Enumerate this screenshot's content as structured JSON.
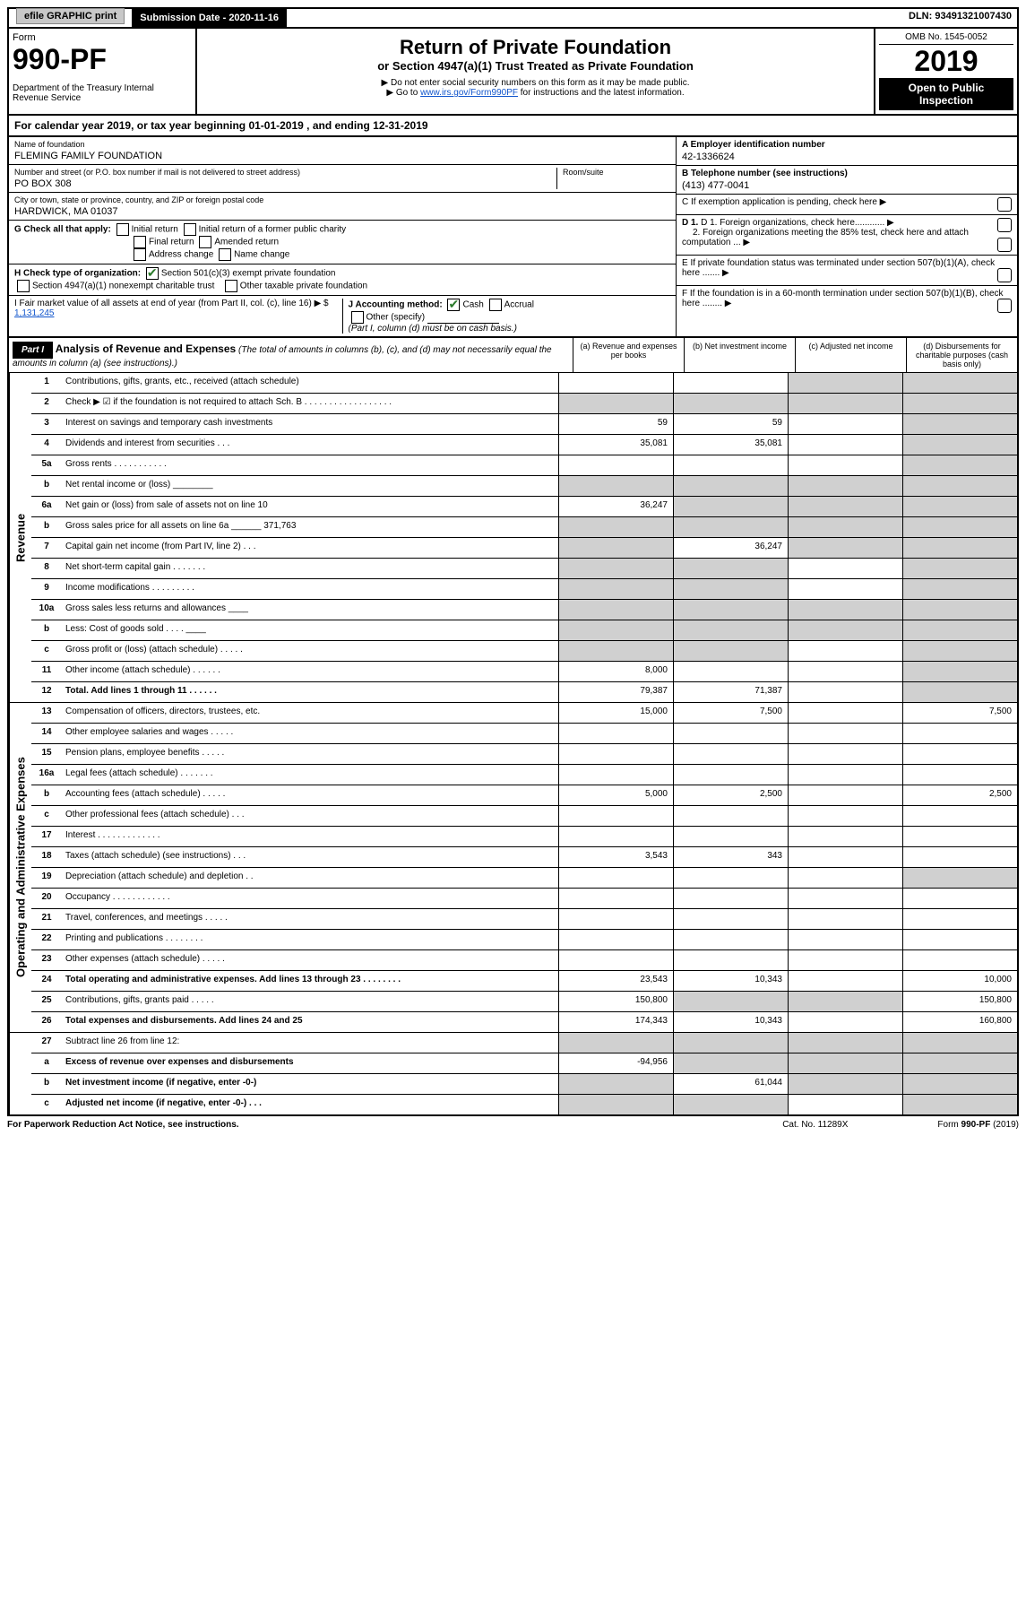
{
  "topbar": {
    "efile": "efile GRAPHIC print",
    "submission": "Submission Date - 2020-11-16",
    "dln": "DLN: 93491321007430"
  },
  "header": {
    "form": "Form",
    "form_num": "990-PF",
    "dept": "Department of the Treasury\nInternal Revenue Service",
    "title": "Return of Private Foundation",
    "subtitle": "or Section 4947(a)(1) Trust Treated as Private Foundation",
    "instr1": "▶ Do not enter social security numbers on this form as it may be made public.",
    "instr2": "▶ Go to ",
    "instr_link": "www.irs.gov/Form990PF",
    "instr3": " for instructions and the latest information.",
    "omb": "OMB No. 1545-0052",
    "year": "2019",
    "open": "Open to Public Inspection"
  },
  "calyear": "For calendar year 2019, or tax year beginning 01-01-2019                         , and ending 12-31-2019",
  "info": {
    "name_label": "Name of foundation",
    "name": "FLEMING FAMILY FOUNDATION",
    "addr_label": "Number and street (or P.O. box number if mail is not delivered to street address)",
    "addr": "PO BOX 308",
    "room_label": "Room/suite",
    "city_label": "City or town, state or province, country, and ZIP or foreign postal code",
    "city": "HARDWICK, MA  01037",
    "ein_label": "A Employer identification number",
    "ein": "42-1336624",
    "phone_label": "B Telephone number (see instructions)",
    "phone": "(413) 477-0041",
    "c_label": "C  If exemption application is pending, check here",
    "d1": "D 1. Foreign organizations, check here............",
    "d2": "2. Foreign organizations meeting the 85% test, check here and attach computation ...",
    "e_label": "E  If private foundation status was terminated under section 507(b)(1)(A), check here .......",
    "f_label": "F  If the foundation is in a 60-month termination under section 507(b)(1)(B), check here ........"
  },
  "checks": {
    "g_label": "G Check all that apply:",
    "initial": "Initial return",
    "initial_former": "Initial return of a former public charity",
    "final": "Final return",
    "amended": "Amended return",
    "addr_change": "Address change",
    "name_change": "Name change",
    "h_label": "H Check type of organization:",
    "501c3": "Section 501(c)(3) exempt private foundation",
    "4947": "Section 4947(a)(1) nonexempt charitable trust",
    "other_taxable": "Other taxable private foundation",
    "i_label": "I Fair market value of all assets at end of year (from Part II, col. (c), line 16) ▶ $",
    "i_val": "1,131,245",
    "j_label": "J Accounting method:",
    "cash": "Cash",
    "accrual": "Accrual",
    "other_spec": "Other (specify)",
    "j_note": "(Part I, column (d) must be on cash basis.)"
  },
  "part1": {
    "label": "Part I",
    "title": "Analysis of Revenue and Expenses",
    "note": "(The total of amounts in columns (b), (c), and (d) may not necessarily equal the amounts in column (a) (see instructions).)",
    "col_a": "(a)  Revenue and expenses per books",
    "col_b": "(b)  Net investment income",
    "col_c": "(c)  Adjusted net income",
    "col_d": "(d)  Disbursements for charitable purposes (cash basis only)"
  },
  "sections": {
    "revenue": "Revenue",
    "expenses": "Operating and Administrative Expenses"
  },
  "rows": [
    {
      "n": "1",
      "d": "Contributions, gifts, grants, etc., received (attach schedule)",
      "a": "",
      "b": "",
      "c": "shade",
      "dd": "shade"
    },
    {
      "n": "2",
      "d": "Check ▶ ☑ if the foundation is not required to attach Sch. B . . . . . . . . . . . . . . . . . .",
      "a": "shade",
      "b": "shade",
      "c": "shade",
      "dd": "shade"
    },
    {
      "n": "3",
      "d": "Interest on savings and temporary cash investments",
      "a": "59",
      "b": "59",
      "c": "",
      "dd": "shade"
    },
    {
      "n": "4",
      "d": "Dividends and interest from securities . . .",
      "a": "35,081",
      "b": "35,081",
      "c": "",
      "dd": "shade"
    },
    {
      "n": "5a",
      "d": "Gross rents . . . . . . . . . . .",
      "a": "",
      "b": "",
      "c": "",
      "dd": "shade"
    },
    {
      "n": "b",
      "d": "Net rental income or (loss) ________",
      "a": "shade",
      "b": "shade",
      "c": "shade",
      "dd": "shade"
    },
    {
      "n": "6a",
      "d": "Net gain or (loss) from sale of assets not on line 10",
      "a": "36,247",
      "b": "shade",
      "c": "shade",
      "dd": "shade"
    },
    {
      "n": "b",
      "d": "Gross sales price for all assets on line 6a ______ 371,763",
      "a": "shade",
      "b": "shade",
      "c": "shade",
      "dd": "shade"
    },
    {
      "n": "7",
      "d": "Capital gain net income (from Part IV, line 2) . . .",
      "a": "shade",
      "b": "36,247",
      "c": "shade",
      "dd": "shade"
    },
    {
      "n": "8",
      "d": "Net short-term capital gain . . . . . . .",
      "a": "shade",
      "b": "shade",
      "c": "",
      "dd": "shade"
    },
    {
      "n": "9",
      "d": "Income modifications . . . . . . . . .",
      "a": "shade",
      "b": "shade",
      "c": "",
      "dd": "shade"
    },
    {
      "n": "10a",
      "d": "Gross sales less returns and allowances ____",
      "a": "shade",
      "b": "shade",
      "c": "shade",
      "dd": "shade"
    },
    {
      "n": "b",
      "d": "Less: Cost of goods sold . . . . ____",
      "a": "shade",
      "b": "shade",
      "c": "shade",
      "dd": "shade"
    },
    {
      "n": "c",
      "d": "Gross profit or (loss) (attach schedule) . . . . .",
      "a": "shade",
      "b": "shade",
      "c": "",
      "dd": "shade"
    },
    {
      "n": "11",
      "d": "Other income (attach schedule) . . . . . .",
      "a": "8,000",
      "b": "",
      "c": "",
      "dd": "shade"
    },
    {
      "n": "12",
      "d": "Total. Add lines 1 through 11 . . . . . .",
      "bold": true,
      "a": "79,387",
      "b": "71,387",
      "c": "",
      "dd": "shade"
    }
  ],
  "exp_rows": [
    {
      "n": "13",
      "d": "Compensation of officers, directors, trustees, etc.",
      "a": "15,000",
      "b": "7,500",
      "c": "",
      "dd": "7,500"
    },
    {
      "n": "14",
      "d": "Other employee salaries and wages . . . . .",
      "a": "",
      "b": "",
      "c": "",
      "dd": ""
    },
    {
      "n": "15",
      "d": "Pension plans, employee benefits . . . . .",
      "a": "",
      "b": "",
      "c": "",
      "dd": ""
    },
    {
      "n": "16a",
      "d": "Legal fees (attach schedule) . . . . . . .",
      "a": "",
      "b": "",
      "c": "",
      "dd": ""
    },
    {
      "n": "b",
      "d": "Accounting fees (attach schedule) . . . . .",
      "a": "5,000",
      "b": "2,500",
      "c": "",
      "dd": "2,500"
    },
    {
      "n": "c",
      "d": "Other professional fees (attach schedule) . . .",
      "a": "",
      "b": "",
      "c": "",
      "dd": ""
    },
    {
      "n": "17",
      "d": "Interest . . . . . . . . . . . . .",
      "a": "",
      "b": "",
      "c": "",
      "dd": ""
    },
    {
      "n": "18",
      "d": "Taxes (attach schedule) (see instructions) . . .",
      "a": "3,543",
      "b": "343",
      "c": "",
      "dd": ""
    },
    {
      "n": "19",
      "d": "Depreciation (attach schedule) and depletion . .",
      "a": "",
      "b": "",
      "c": "",
      "dd": "shade"
    },
    {
      "n": "20",
      "d": "Occupancy . . . . . . . . . . . .",
      "a": "",
      "b": "",
      "c": "",
      "dd": ""
    },
    {
      "n": "21",
      "d": "Travel, conferences, and meetings . . . . .",
      "a": "",
      "b": "",
      "c": "",
      "dd": ""
    },
    {
      "n": "22",
      "d": "Printing and publications . . . . . . . .",
      "a": "",
      "b": "",
      "c": "",
      "dd": ""
    },
    {
      "n": "23",
      "d": "Other expenses (attach schedule) . . . . .",
      "a": "",
      "b": "",
      "c": "",
      "dd": ""
    },
    {
      "n": "24",
      "d": "Total operating and administrative expenses. Add lines 13 through 23 . . . . . . . .",
      "bold": true,
      "a": "23,543",
      "b": "10,343",
      "c": "",
      "dd": "10,000"
    },
    {
      "n": "25",
      "d": "Contributions, gifts, grants paid . . . . .",
      "a": "150,800",
      "b": "shade",
      "c": "shade",
      "dd": "150,800"
    },
    {
      "n": "26",
      "d": "Total expenses and disbursements. Add lines 24 and 25",
      "bold": true,
      "a": "174,343",
      "b": "10,343",
      "c": "",
      "dd": "160,800"
    }
  ],
  "sub_rows": [
    {
      "n": "27",
      "d": "Subtract line 26 from line 12:",
      "a": "shade",
      "b": "shade",
      "c": "shade",
      "dd": "shade"
    },
    {
      "n": "a",
      "d": "Excess of revenue over expenses and disbursements",
      "bold": true,
      "a": "-94,956",
      "b": "shade",
      "c": "shade",
      "dd": "shade"
    },
    {
      "n": "b",
      "d": "Net investment income (if negative, enter -0-)",
      "bold": true,
      "a": "shade",
      "b": "61,044",
      "c": "shade",
      "dd": "shade"
    },
    {
      "n": "c",
      "d": "Adjusted net income (if negative, enter -0-) . . .",
      "bold": true,
      "a": "shade",
      "b": "shade",
      "c": "",
      "dd": "shade"
    }
  ],
  "footer": {
    "left": "For Paperwork Reduction Act Notice, see instructions.",
    "mid": "Cat. No. 11289X",
    "right": "Form 990-PF (2019)"
  }
}
